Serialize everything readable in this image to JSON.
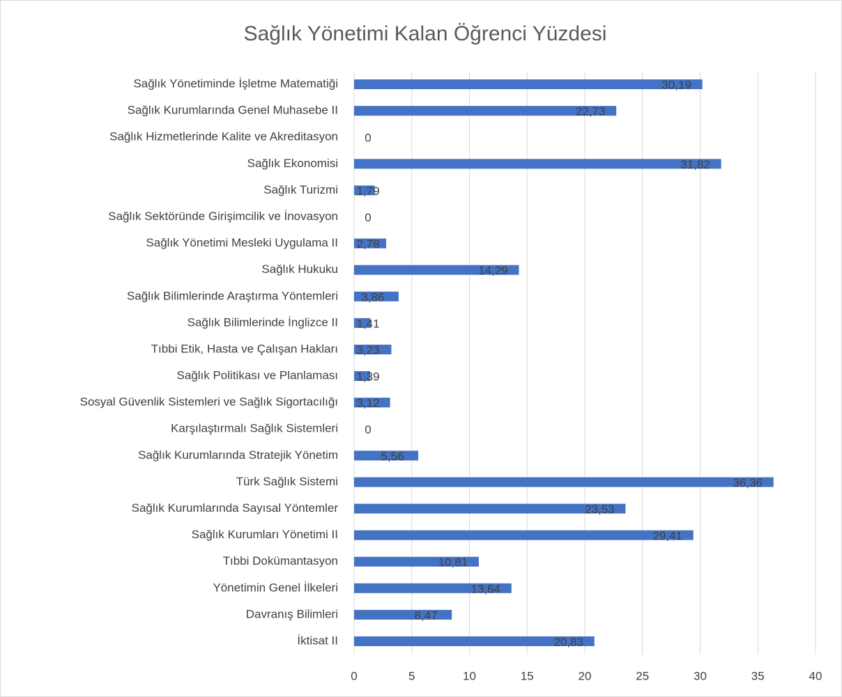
{
  "chart_data": {
    "type": "bar",
    "orientation": "horizontal",
    "title": "Sağlık Yönetimi Kalan Öğrenci Yüzdesi",
    "categories": [
      "Sağlık Yönetiminde İşletme Matematiği",
      "Sağlık Kurumlarında Genel Muhasebe II",
      "Sağlık Hizmetlerinde Kalite ve Akreditasyon",
      "Sağlık Ekonomisi",
      "Sağlık Turizmi",
      "Sağlık Sektöründe Girişimcilik ve İnovasyon",
      "Sağlık Yönetimi Mesleki Uygulama II",
      "Sağlık Hukuku",
      "Sağlık Bilimlerinde Araştırma Yöntemleri",
      "Sağlık Bilimlerinde İnglizce II",
      "Tıbbi Etik, Hasta ve Çalışan Hakları",
      "Sağlık Politikası ve Planlaması",
      "Sosyal Güvenlik Sistemleri ve Sağlık Sigortacılığı",
      "Karşılaştırmalı Sağlık Sistemleri",
      "Sağlık Kurumlarında Stratejik Yönetim",
      "Türk Sağlık Sistemi",
      "Sağlık Kurumlarında Sayısal Yöntemler",
      "Sağlık Kurumları Yönetimi II",
      "Tıbbi Dokümantasyon",
      "Yönetimin Genel İlkeleri",
      "Davranış Bilimleri",
      "İktisat II"
    ],
    "values": [
      30.19,
      22.73,
      0,
      31.82,
      1.79,
      0,
      2.78,
      14.29,
      3.86,
      1.41,
      3.23,
      1.39,
      3.12,
      0,
      5.56,
      36.36,
      23.53,
      29.41,
      10.81,
      13.64,
      8.47,
      20.83
    ],
    "value_labels": [
      "30,19",
      "22,73",
      "0",
      "31,82",
      "1,79",
      "0",
      "2,78",
      "14,29",
      "3,86",
      "1,41",
      "3,23",
      "1,39",
      "3,12",
      "0",
      "5,56",
      "36,36",
      "23,53",
      "29,41",
      "10,81",
      "13,64",
      "8,47",
      "20,83"
    ],
    "color": "#4472c4",
    "xlim": [
      0,
      40
    ],
    "xticks": [
      0,
      5,
      10,
      15,
      20,
      25,
      30,
      35,
      40
    ],
    "grid": true
  }
}
